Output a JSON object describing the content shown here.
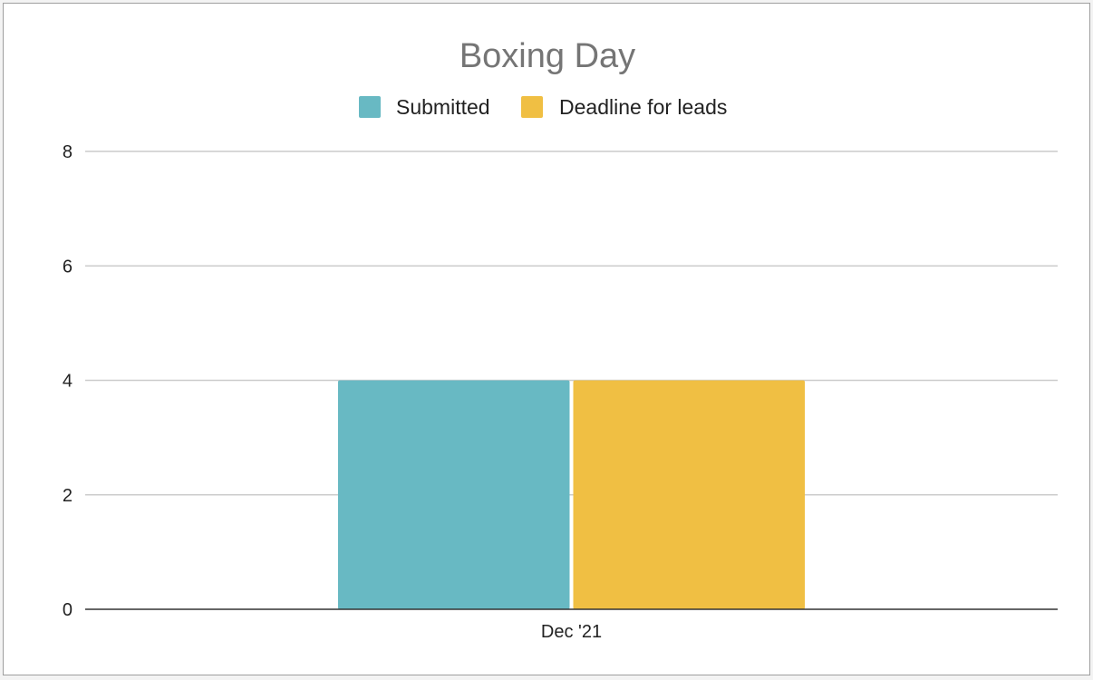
{
  "chart_data": {
    "type": "bar",
    "title": "Boxing Day",
    "categories": [
      "Dec '21"
    ],
    "series": [
      {
        "name": "Submitted",
        "values": [
          4
        ],
        "color": "#68b9c3"
      },
      {
        "name": "Deadline for leads",
        "values": [
          4
        ],
        "color": "#f0bf43"
      }
    ],
    "xlabel": "",
    "ylabel": "",
    "ylim": [
      0,
      8
    ],
    "yticks": [
      "0",
      "2",
      "4",
      "6",
      "8"
    ],
    "grid": true,
    "legend_position": "top-center"
  },
  "colors": {
    "title": "#757575",
    "gridline": "#cccccc",
    "axis": "#333333",
    "frame_border": "#9e9e9e",
    "sheet_background": "#f3f3f3"
  }
}
